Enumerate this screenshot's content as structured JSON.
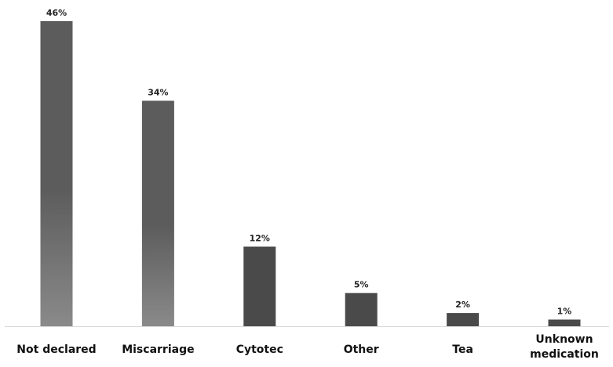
{
  "chart_data": {
    "type": "bar",
    "title": "",
    "xlabel": "",
    "ylabel": "",
    "categories": [
      "Not declared",
      "Miscarriage",
      "Cytotec",
      "Other",
      "Tea",
      "Unknown medication"
    ],
    "values": [
      46,
      34,
      12,
      5,
      2,
      1
    ],
    "value_labels": [
      "46%",
      "34%",
      "12%",
      "5%",
      "2%",
      "1%"
    ],
    "ylim": [
      0,
      46
    ],
    "grid": false,
    "legend": "none",
    "colors": {
      "bar_gradient_top": "#5c5c5c",
      "bar_gradient_bottom": "#8a8a8a",
      "bar_solid": "#4a4a4a",
      "axis": "#d9d9d9"
    }
  }
}
